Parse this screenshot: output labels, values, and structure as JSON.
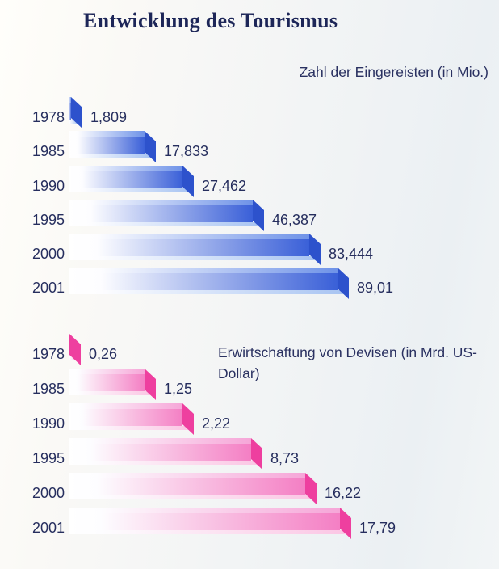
{
  "page": {
    "title": "Entwicklung des Tourismus"
  },
  "text_color": "#262e5e",
  "chart_data": [
    {
      "id": "arrivals",
      "type": "bar",
      "orientation": "horizontal",
      "title": "Zahl der Eingereisten (in Mio.)",
      "unit": "Mio.",
      "categories": [
        "1978",
        "1985",
        "1990",
        "1995",
        "2000",
        "2001"
      ],
      "values": [
        1.809,
        17.833,
        27.462,
        46.387,
        83.444,
        89.01
      ],
      "value_labels": [
        "1,809",
        "17,833",
        "27,462",
        "46,387",
        "83,444",
        "89,01"
      ],
      "colors": {
        "main": "#3a60d8",
        "top": "#6f93e8",
        "bottom": "#a8c4f2",
        "cap": "#2d52cc"
      },
      "layout": {
        "legend": "none",
        "grid": false,
        "title_position": "top-right",
        "bar_start": 85,
        "bar_ends": [
          90,
          181,
          228,
          315,
          385,
          420
        ],
        "row_tops": [
          120,
          162,
          205,
          247,
          289,
          331
        ]
      }
    },
    {
      "id": "revenue",
      "type": "bar",
      "orientation": "horizontal",
      "title": "Erwirtschaftung von Devisen (in Mrd. US-Dollar)",
      "unit": "Mrd. US-Dollar",
      "categories": [
        "1978",
        "1985",
        "1990",
        "1995",
        "2000",
        "2001"
      ],
      "values": [
        0.26,
        1.25,
        2.22,
        8.73,
        16.22,
        17.79
      ],
      "value_labels": [
        "0,26",
        "1,25",
        "2,22",
        "8,73",
        "16,22",
        "17,79"
      ],
      "colors": {
        "main": "#f47fc4",
        "top": "#f6a6d8",
        "bottom": "#fbc6e4",
        "cap": "#ee3f9f"
      },
      "layout": {
        "legend": "none",
        "grid": false,
        "title_position": "right-of-top-bars",
        "bar_start": 85,
        "bar_ends": [
          88,
          181,
          228,
          313,
          380,
          423
        ],
        "row_tops": [
          413,
          456,
          499,
          542,
          585,
          628
        ]
      }
    }
  ]
}
